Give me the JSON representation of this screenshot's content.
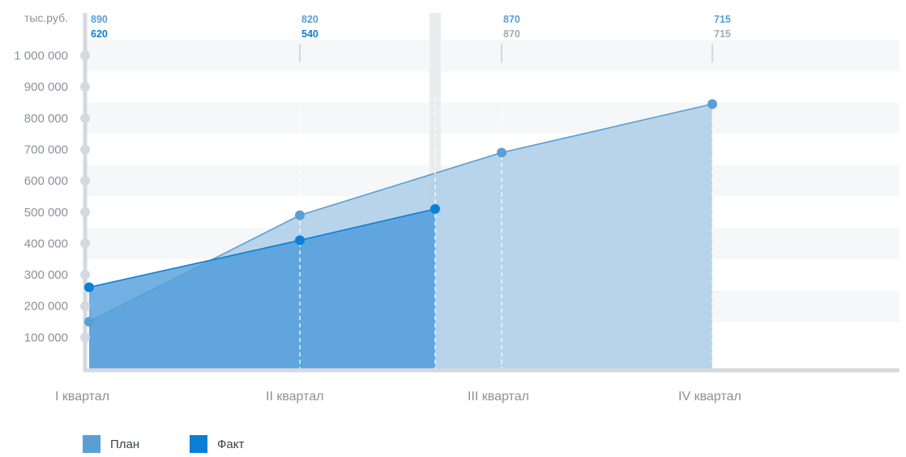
{
  "chart_data": {
    "type": "area",
    "unit_label": "тыс.руб.",
    "categories": [
      "I квартал",
      "II квартал",
      "III квартал",
      "IV квартал"
    ],
    "y_ticks": [
      "100 000",
      "200 000",
      "300 000",
      "400 000",
      "500 000",
      "600 000",
      "700 000",
      "800 000",
      "900 000",
      "1 000 000"
    ],
    "ylim": [
      0,
      1000000
    ],
    "series": [
      {
        "name": "План",
        "color": "#5a9fd4",
        "points": [
          {
            "quarter": "I квартал",
            "value": 150000
          },
          {
            "quarter": "II квартал",
            "value": 490000
          },
          {
            "quarter": "III квартал",
            "value": 690000
          },
          {
            "quarter": "IV квартал",
            "value": 845000
          }
        ]
      },
      {
        "name": "Факт",
        "color": "#0a7fd6",
        "points": [
          {
            "quarter": "I квартал",
            "value": 260000
          },
          {
            "quarter": "II квартал",
            "value": 410000
          },
          {
            "quarter": "II–III квартал",
            "value": 510000
          }
        ]
      }
    ],
    "top_values": [
      {
        "quarter": "I квартал",
        "plan": "890",
        "fact": "620",
        "fact_color": "#0a7fd6"
      },
      {
        "quarter": "II квартал",
        "plan": "820",
        "fact": "540",
        "fact_color": "#0a7fd6"
      },
      {
        "quarter": "III квартал",
        "plan": "870",
        "fact": "870",
        "fact_color": "#a4abb3"
      },
      {
        "quarter": "IV квартал",
        "plan": "715",
        "fact": "715",
        "fact_color": "#a4abb3"
      }
    ],
    "legend": [
      {
        "label": "План",
        "color": "#5a9fd4"
      },
      {
        "label": "Факт",
        "color": "#0a7fd6"
      }
    ],
    "legend_position": "bottom-left",
    "grid": true
  }
}
